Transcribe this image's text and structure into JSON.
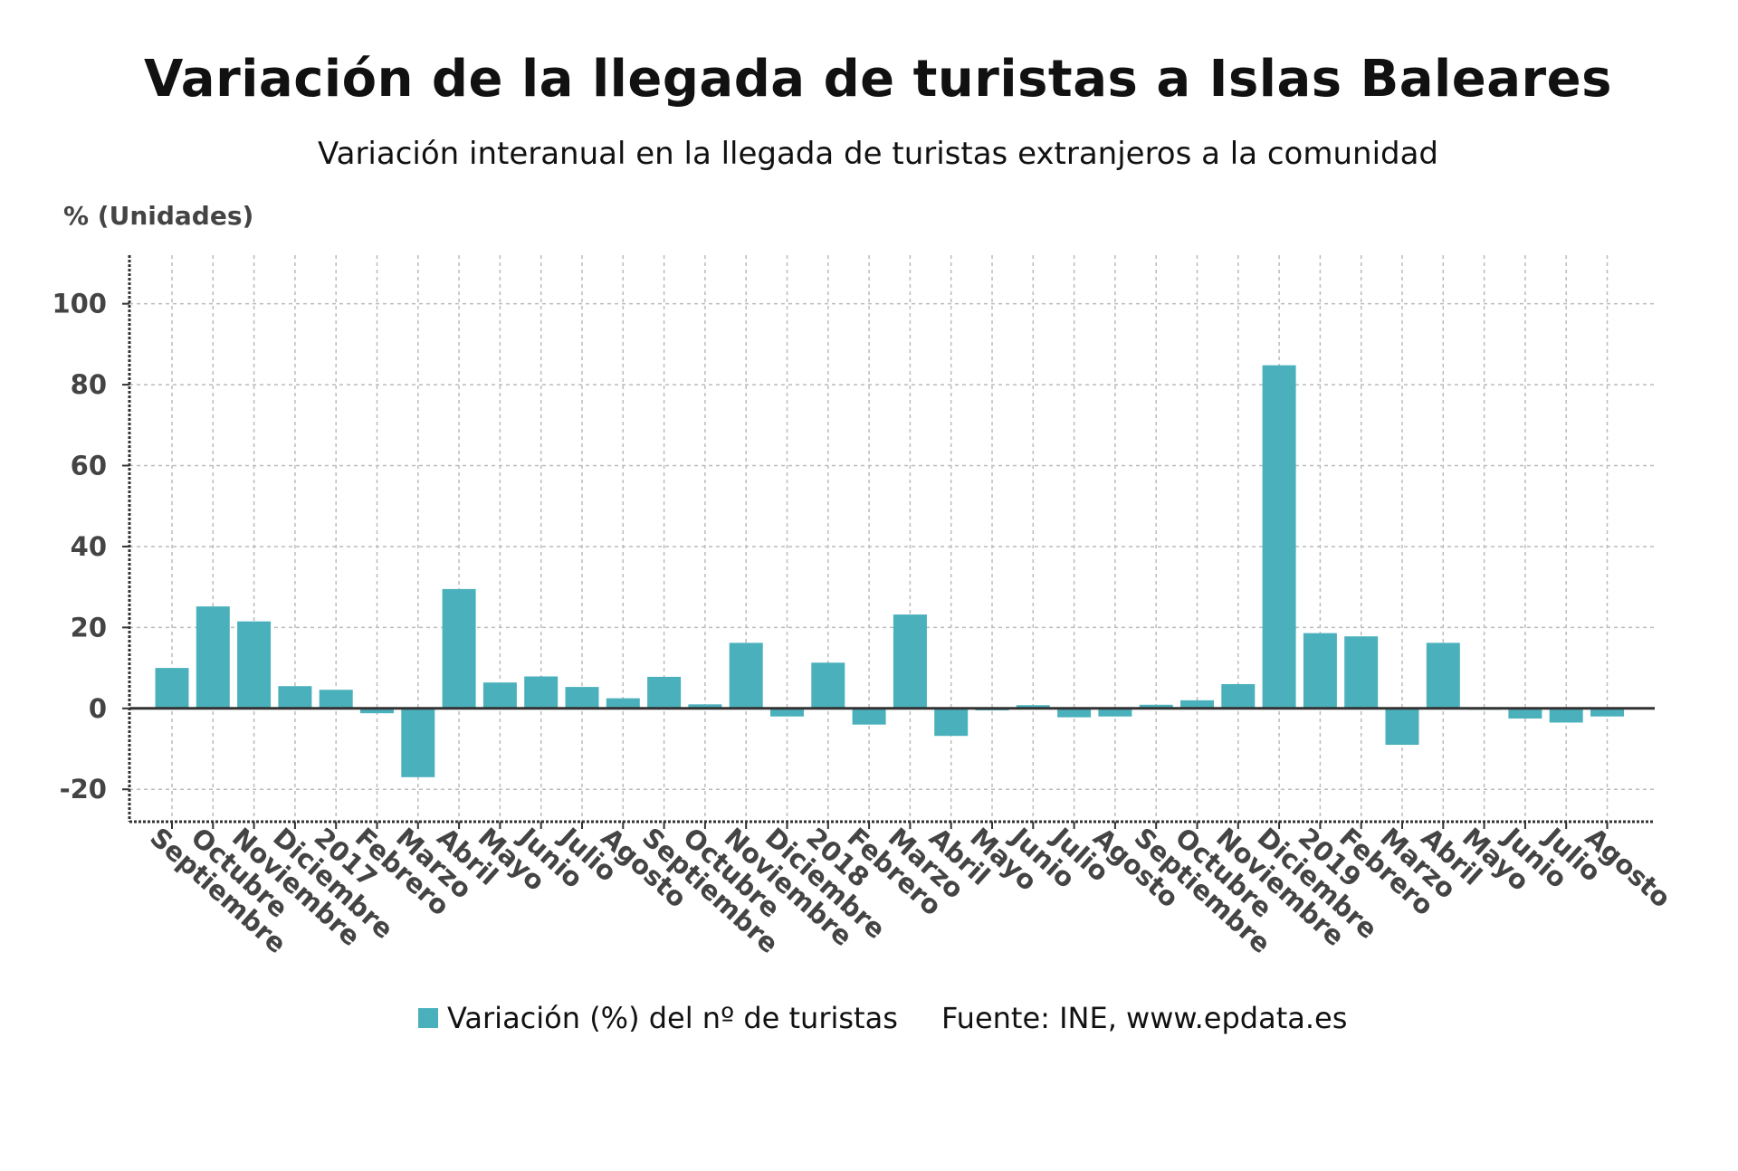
{
  "title": "Variación de la llegada de turistas a Islas Baleares",
  "subtitle": "Variación interanual en la llegada de turistas extranjeros a la comunidad",
  "colors": {
    "bar": "#4ab1bc",
    "grid": "#bbbbbb",
    "axis": "#333333"
  },
  "chart_data": {
    "type": "bar",
    "ylabel": "% (Unidades)",
    "ylim": [
      -28,
      112
    ],
    "yticks": [
      -20,
      0,
      20,
      40,
      60,
      80,
      100
    ],
    "grid": true,
    "legend_position": "bottom",
    "categories": [
      "Septiembre",
      "Octubre",
      "Noviembre",
      "Diciembre",
      "2017",
      "Febrero",
      "Marzo",
      "Abril",
      "Mayo",
      "Junio",
      "Julio",
      "Agosto",
      "Septiembre",
      "Octubre",
      "Noviembre",
      "Diciembre",
      "2018",
      "Febrero",
      "Marzo",
      "Abril",
      "Mayo",
      "Junio",
      "Julio",
      "Agosto",
      "Septiembre",
      "Octubre",
      "Noviembre",
      "Diciembre",
      "2019",
      "Febrero",
      "Marzo",
      "Abril",
      "Mayo",
      "Junio",
      "Julio",
      "Agosto"
    ],
    "series": [
      {
        "name": "Variación (%) del nº de turistas",
        "values": [
          10.0,
          25.2,
          21.5,
          5.5,
          4.6,
          -1.2,
          -17.0,
          29.5,
          6.4,
          7.9,
          5.3,
          2.5,
          7.8,
          1.0,
          16.2,
          -2.0,
          11.3,
          -4.0,
          23.2,
          -6.8,
          -0.5,
          0.8,
          -2.2,
          -2.0,
          0.9,
          2.0,
          6.0,
          84.8,
          18.6,
          17.8,
          -9.0,
          16.2,
          -0.3,
          -2.5,
          -3.5,
          -2.0
        ]
      }
    ],
    "source": "Fuente: INE, www.epdata.es"
  }
}
